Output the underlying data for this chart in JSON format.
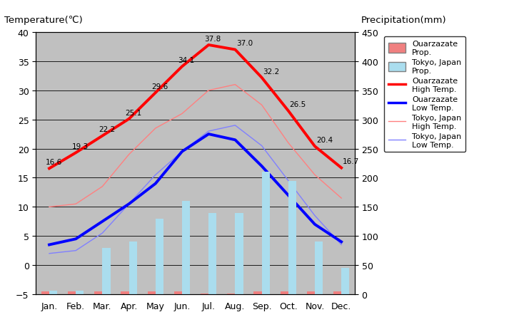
{
  "months": [
    "Jan.",
    "Feb.",
    "Mar.",
    "Apr.",
    "May",
    "Jun.",
    "Jul.",
    "Aug.",
    "Sep.",
    "Oct.",
    "Nov.",
    "Dec."
  ],
  "ouarzazate_high": [
    16.6,
    19.3,
    22.2,
    25.1,
    29.6,
    34.1,
    37.8,
    37.0,
    32.2,
    26.5,
    20.4,
    16.7
  ],
  "ouarzazate_low_temp": [
    3.5,
    4.5,
    7.5,
    10.5,
    14.0,
    19.5,
    22.5,
    21.5,
    17.0,
    12.0,
    7.0,
    4.0
  ],
  "tokyo_high": [
    10.0,
    10.5,
    13.5,
    19.0,
    23.5,
    26.0,
    30.0,
    31.0,
    27.5,
    21.0,
    15.5,
    11.5
  ],
  "tokyo_low": [
    2.0,
    2.5,
    5.5,
    10.5,
    15.5,
    19.5,
    23.0,
    24.0,
    20.5,
    14.5,
    8.5,
    3.5
  ],
  "ouarzazate_precip_mm": [
    5,
    5,
    5,
    5,
    5,
    5,
    1,
    1,
    5,
    5,
    5,
    5
  ],
  "tokyo_precip_mm": [
    6,
    6,
    80,
    90,
    130,
    160,
    140,
    140,
    210,
    195,
    90,
    45
  ],
  "precip_scale_max": 450,
  "temp_max": 40,
  "temp_min": -5,
  "background_color": "#c8c8c8",
  "plot_bg_color": "#c0c0c0",
  "title_left": "Temperature(℃)",
  "title_right": "Precipitation(mm)",
  "ouarzazate_high_color": "#ff0000",
  "ouarzazate_low_color": "#0000ff",
  "tokyo_high_color": "#ff8080",
  "tokyo_low_color": "#8080ff",
  "ouarzazate_bar_color": "#f08080",
  "tokyo_bar_color": "#aaddee",
  "grid_color": "#000000",
  "annot_vals": [
    16.6,
    19.3,
    22.2,
    25.1,
    29.6,
    34.1,
    37.8,
    37.0,
    32.2,
    26.5,
    20.4,
    16.7
  ],
  "legend_fontsize": 8,
  "tick_fontsize": 9,
  "bar_width": 0.3
}
